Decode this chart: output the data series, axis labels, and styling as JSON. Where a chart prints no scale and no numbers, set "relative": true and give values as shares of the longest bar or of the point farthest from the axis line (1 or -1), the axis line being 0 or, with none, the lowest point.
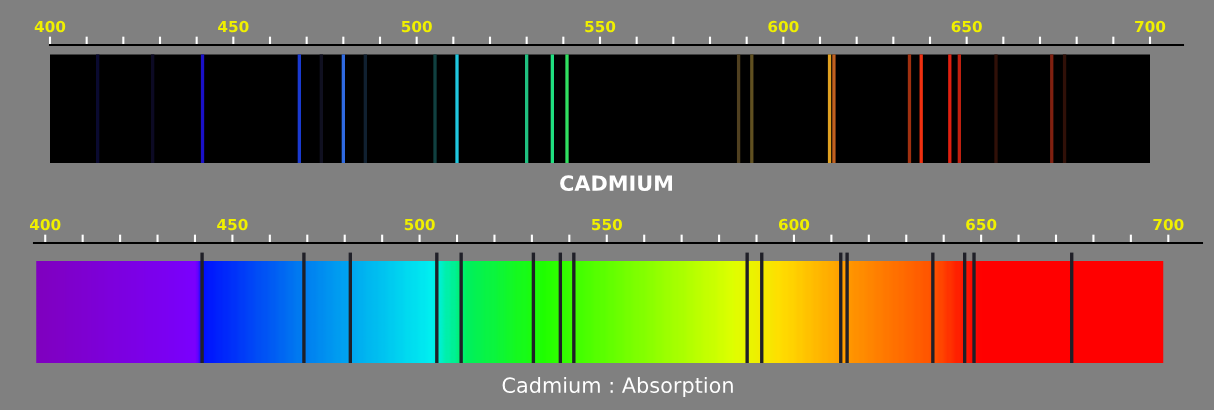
{
  "chart_data": [
    {
      "type": "bar",
      "relative": true,
      "xlabel": "CADMIUM",
      "xlim": [
        400,
        709
      ],
      "xticks": [
        400,
        {
          "value": 410,
          "label": null
        },
        {
          "value": 420,
          "label": null
        },
        {
          "value": 430,
          "label": null
        },
        {
          "value": 440,
          "label": null
        },
        450,
        {
          "value": 460,
          "label": null
        },
        {
          "value": 470,
          "label": null
        },
        {
          "value": 480,
          "label": null
        },
        {
          "value": 490,
          "label": null
        },
        500,
        {
          "value": 510,
          "label": null
        },
        {
          "value": 520,
          "label": null
        },
        {
          "value": 530,
          "label": null
        },
        {
          "value": 540,
          "label": null
        },
        550,
        {
          "value": 560,
          "label": null
        },
        {
          "value": 570,
          "label": null
        },
        {
          "value": 580,
          "label": null
        },
        {
          "value": 590,
          "label": null
        },
        600,
        {
          "value": 610,
          "label": null
        },
        {
          "value": 620,
          "label": null
        },
        {
          "value": 630,
          "label": null
        },
        {
          "value": 640,
          "label": null
        },
        650,
        {
          "value": 660,
          "label": null
        },
        {
          "value": 670,
          "label": null
        },
        {
          "value": 680,
          "label": null
        },
        {
          "value": 690,
          "label": null
        },
        700
      ],
      "bands": [
        {
          "axis": "x",
          "from": 400,
          "to": 700,
          "color": "#000000"
        }
      ],
      "x": [
        413,
        428,
        441.6,
        468,
        474,
        480,
        486,
        505,
        511,
        530,
        537,
        541,
        587.8,
        591.4,
        612.6,
        613.8,
        634.4,
        637.6,
        645.4,
        648,
        658,
        673.2,
        676.7
      ],
      "values": [
        1,
        1,
        1,
        1,
        1,
        1,
        1,
        1,
        1,
        1,
        1,
        1,
        1,
        1,
        1,
        1,
        1,
        1,
        1,
        1,
        1,
        1,
        1
      ],
      "colors": [
        "#0a0a30",
        "#0c0a24",
        "#1a10c8",
        "#1a3ad0",
        "#101020",
        "#2f6ae0",
        "#102030",
        "#104040",
        "#20c8e0",
        "#20c080",
        "#20e080",
        "#30e060",
        "#504020",
        "#605020",
        "#e0a020",
        "#c06020",
        "#a03010",
        "#f03010",
        "#e02010",
        "#c02010",
        "#301008",
        "#802010",
        "#301008"
      ]
    },
    {
      "type": "bar",
      "relative": true,
      "xlabel": "Cadmium : Absorption",
      "xlim": [
        397,
        709
      ],
      "xticks": [
        400,
        {
          "value": 410,
          "label": null
        },
        {
          "value": 420,
          "label": null
        },
        {
          "value": 430,
          "label": null
        },
        {
          "value": 440,
          "label": null
        },
        450,
        {
          "value": 460,
          "label": null
        },
        {
          "value": 470,
          "label": null
        },
        {
          "value": 480,
          "label": null
        },
        {
          "value": 490,
          "label": null
        },
        500,
        {
          "value": 510,
          "label": null
        },
        {
          "value": 520,
          "label": null
        },
        {
          "value": 530,
          "label": null
        },
        {
          "value": 540,
          "label": null
        },
        550,
        {
          "value": 560,
          "label": null
        },
        {
          "value": 570,
          "label": null
        },
        {
          "value": 580,
          "label": null
        },
        {
          "value": 590,
          "label": null
        },
        600,
        {
          "value": 610,
          "label": null
        },
        {
          "value": 620,
          "label": null
        },
        {
          "value": 630,
          "label": null
        },
        {
          "value": 640,
          "label": null
        },
        650,
        {
          "value": 660,
          "label": null
        },
        {
          "value": 670,
          "label": null
        },
        {
          "value": 680,
          "label": null
        },
        {
          "value": 690,
          "label": null
        },
        700
      ],
      "bands": [
        {
          "axis": "x",
          "from": 397.6,
          "to": 698.5
        }
      ],
      "x": [
        441.9,
        469.1,
        481.5,
        504.6,
        511.1,
        530.4,
        537.6,
        541.2,
        587.5,
        591.4,
        612.5,
        614.2,
        637.1,
        645.6,
        648.1,
        674.2
      ],
      "values": [
        1,
        1,
        1,
        1,
        1,
        1,
        1,
        1,
        1,
        1,
        1,
        1,
        1,
        1,
        1,
        1
      ],
      "color": "#202028"
    }
  ]
}
